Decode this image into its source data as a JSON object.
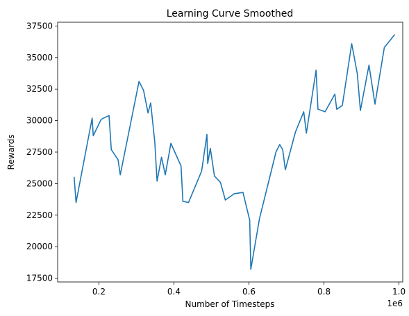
{
  "chart_data": {
    "type": "line",
    "title": "Learning Curve Smoothed",
    "xlabel": "Number of Timesteps",
    "ylabel": "Rewards",
    "x_offset_label": "1e6",
    "xlim": [
      0.09,
      1.01
    ],
    "ylim": [
      17200,
      37800
    ],
    "x_ticks": [
      0.2,
      0.4,
      0.6,
      0.8,
      1.0
    ],
    "x_tick_labels": [
      "0.2",
      "0.4",
      "0.6",
      "0.8",
      "1.0"
    ],
    "y_ticks": [
      17500,
      20000,
      22500,
      25000,
      27500,
      30000,
      32500,
      35000,
      37500
    ],
    "y_tick_labels": [
      "17500",
      "20000",
      "22500",
      "25000",
      "27500",
      "30000",
      "32500",
      "35000",
      "37500"
    ],
    "grid": false,
    "series": [
      {
        "color": "#1f77b4",
        "x": [
          0.134,
          0.139,
          0.182,
          0.185,
          0.206,
          0.227,
          0.233,
          0.251,
          0.257,
          0.282,
          0.307,
          0.319,
          0.331,
          0.338,
          0.349,
          0.355,
          0.367,
          0.377,
          0.392,
          0.419,
          0.424,
          0.439,
          0.474,
          0.488,
          0.49,
          0.497,
          0.508,
          0.524,
          0.537,
          0.561,
          0.584,
          0.602,
          0.605,
          0.628,
          0.672,
          0.682,
          0.69,
          0.697,
          0.724,
          0.746,
          0.753,
          0.779,
          0.784,
          0.803,
          0.829,
          0.834,
          0.849,
          0.874,
          0.889,
          0.897,
          0.92,
          0.936,
          0.961,
          0.988
        ],
        "y": [
          25500,
          23500,
          30200,
          28800,
          30100,
          30400,
          27700,
          26900,
          25700,
          29400,
          33100,
          32400,
          30600,
          31400,
          28300,
          25200,
          27100,
          25700,
          28200,
          26400,
          23600,
          23500,
          26000,
          28900,
          26600,
          27800,
          25600,
          25100,
          23700,
          24200,
          24300,
          22100,
          18200,
          22200,
          27500,
          28100,
          27700,
          26100,
          29100,
          30700,
          29000,
          34000,
          30900,
          30700,
          32100,
          30900,
          31200,
          36100,
          33700,
          30800,
          34400,
          31300,
          35800,
          36800
        ]
      }
    ]
  }
}
